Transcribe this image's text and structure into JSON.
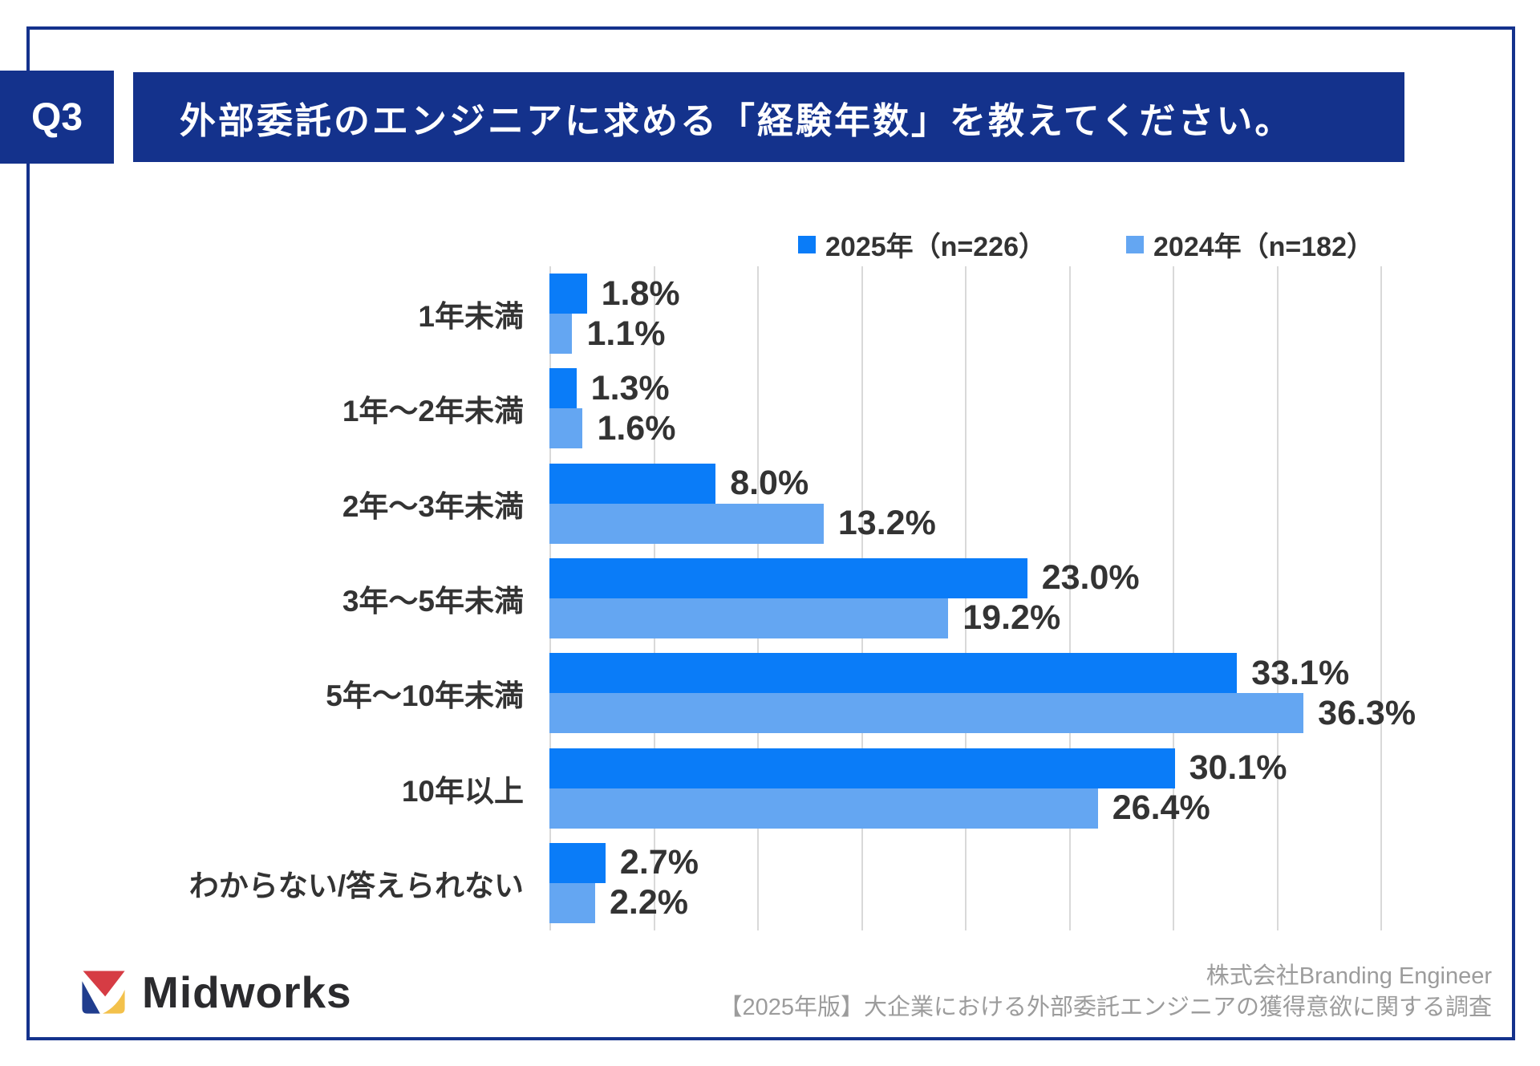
{
  "header": {
    "badge": "Q3",
    "title": "外部委託のエンジニアに求める「経験年数」を教えてください。"
  },
  "chart_data": {
    "type": "bar",
    "orientation": "horizontal",
    "title": "外部委託のエンジニアに求める「経験年数」",
    "categories": [
      "1年未満",
      "1年〜2年未満",
      "2年〜3年未満",
      "3年〜5年未満",
      "5年〜10年未満",
      "10年以上",
      "わからない/答えられない"
    ],
    "series": [
      {
        "key": "2025",
        "name": "2025年（n=226）",
        "color": "#0A7CF8",
        "values": [
          1.8,
          1.3,
          8.0,
          23.0,
          33.1,
          30.1,
          2.7
        ]
      },
      {
        "key": "2024",
        "name": "2024年（n=182）",
        "color": "#64A6F2",
        "values": [
          1.1,
          1.6,
          13.2,
          19.2,
          36.3,
          26.4,
          2.2
        ]
      }
    ],
    "value_suffix": "%",
    "xlim": [
      0,
      40
    ],
    "gridline_step": 5,
    "grid": true,
    "legend_position": "top-right",
    "value_labels": true
  },
  "footer": {
    "logo_text": "Midworks",
    "source_line1": "株式会社Branding Engineer",
    "source_line2": "【2025年版】大企業における外部委託エンジニアの獲得意欲に関する調査"
  },
  "colors": {
    "navy": "#14328C",
    "series_2025": "#0A7CF8",
    "series_2024": "#64A6F2",
    "grid": "#d9d9d9",
    "text": "#333333",
    "muted": "#9c9c9c",
    "logo_red": "#D63C44",
    "logo_blue": "#203D8E",
    "logo_yellow": "#F3C14B"
  }
}
